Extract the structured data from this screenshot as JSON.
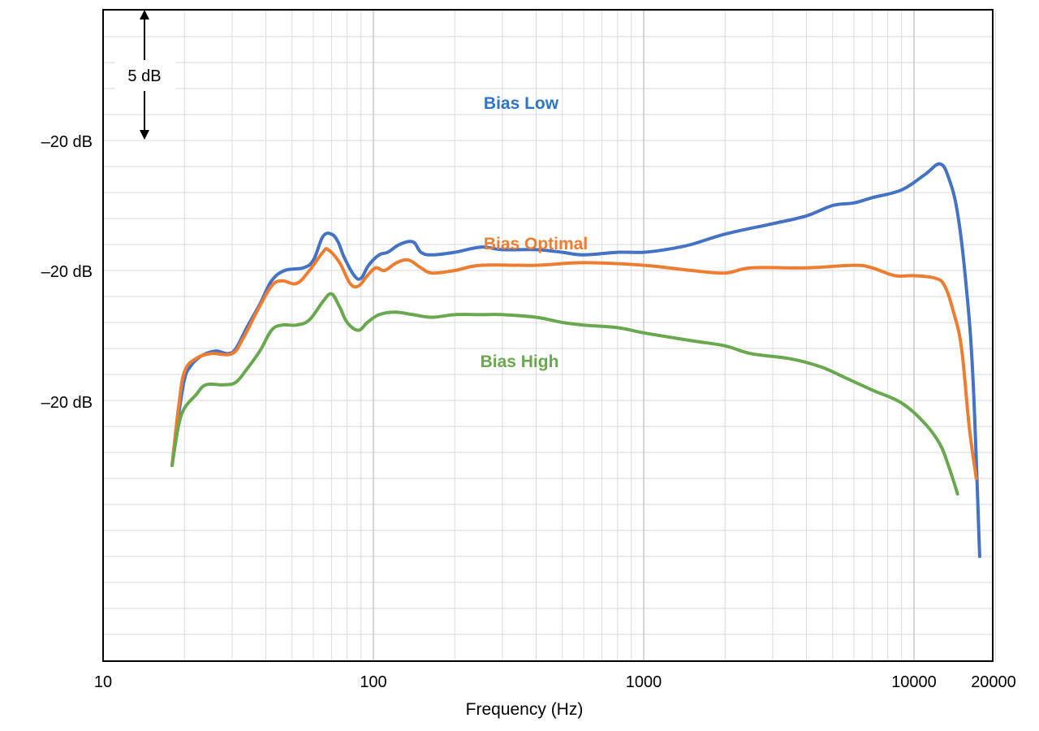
{
  "chart_data": {
    "type": "line",
    "xlabel": "Frequency (Hz)",
    "ylabel": "",
    "x_scale": "log",
    "xlim": [
      10,
      20000
    ],
    "grid": true,
    "legend": "inline labels",
    "x_ticks": [
      "10",
      "100",
      "1000",
      "10000",
      "20000"
    ],
    "y_ticks": [
      "–20 dB",
      "–20 dB",
      "–20 dB"
    ],
    "scale_marker": "5 dB",
    "series": [
      {
        "name": "Bias Low",
        "color": "#4472C4",
        "points": [
          [
            18,
            -25.5
          ],
          [
            19,
            -23.6
          ],
          [
            20,
            -22.2
          ],
          [
            21,
            -21.7
          ],
          [
            23,
            -21.3
          ],
          [
            26,
            -21.1
          ],
          [
            29,
            -21.2
          ],
          [
            31,
            -21.0
          ],
          [
            34,
            -20.2
          ],
          [
            38,
            -19.3
          ],
          [
            42,
            -18.4
          ],
          [
            47,
            -18.0
          ],
          [
            55,
            -17.9
          ],
          [
            60,
            -17.6
          ],
          [
            65,
            -16.7
          ],
          [
            70,
            -16.6
          ],
          [
            74,
            -16.9
          ],
          [
            78,
            -17.5
          ],
          [
            85,
            -18.2
          ],
          [
            90,
            -18.3
          ],
          [
            96,
            -17.8
          ],
          [
            105,
            -17.4
          ],
          [
            113,
            -17.3
          ],
          [
            125,
            -17.0
          ],
          [
            140,
            -16.9
          ],
          [
            150,
            -17.3
          ],
          [
            165,
            -17.4
          ],
          [
            200,
            -17.3
          ],
          [
            250,
            -17.1
          ],
          [
            300,
            -17.2
          ],
          [
            400,
            -17.2
          ],
          [
            500,
            -17.3
          ],
          [
            600,
            -17.4
          ],
          [
            800,
            -17.3
          ],
          [
            1000,
            -17.3
          ],
          [
            1200,
            -17.2
          ],
          [
            1500,
            -17.0
          ],
          [
            2000,
            -16.6
          ],
          [
            3000,
            -16.2
          ],
          [
            4000,
            -15.9
          ],
          [
            5000,
            -15.5
          ],
          [
            6000,
            -15.4
          ],
          [
            7000,
            -15.2
          ],
          [
            9000,
            -14.9
          ],
          [
            11000,
            -14.3
          ],
          [
            12500,
            -13.9
          ],
          [
            13500,
            -14.5
          ],
          [
            14500,
            -15.8
          ],
          [
            15500,
            -18.3
          ],
          [
            16500,
            -22.0
          ],
          [
            17500,
            -29.0
          ]
        ]
      },
      {
        "name": "Bias Optimal",
        "color": "#ED7D31",
        "points": [
          [
            18,
            -25.5
          ],
          [
            19,
            -23.3
          ],
          [
            20,
            -21.9
          ],
          [
            22,
            -21.4
          ],
          [
            25,
            -21.2
          ],
          [
            30,
            -21.2
          ],
          [
            33,
            -20.6
          ],
          [
            37,
            -19.6
          ],
          [
            42,
            -18.6
          ],
          [
            46,
            -18.4
          ],
          [
            52,
            -18.5
          ],
          [
            58,
            -18.0
          ],
          [
            65,
            -17.3
          ],
          [
            68,
            -17.2
          ],
          [
            75,
            -17.7
          ],
          [
            82,
            -18.5
          ],
          [
            88,
            -18.6
          ],
          [
            95,
            -18.2
          ],
          [
            102,
            -17.9
          ],
          [
            110,
            -18.0
          ],
          [
            122,
            -17.7
          ],
          [
            135,
            -17.6
          ],
          [
            150,
            -17.9
          ],
          [
            165,
            -18.1
          ],
          [
            200,
            -18.0
          ],
          [
            250,
            -17.8
          ],
          [
            400,
            -17.8
          ],
          [
            600,
            -17.7
          ],
          [
            1000,
            -17.8
          ],
          [
            1500,
            -18.0
          ],
          [
            2000,
            -18.1
          ],
          [
            2500,
            -17.9
          ],
          [
            4000,
            -17.9
          ],
          [
            6000,
            -17.8
          ],
          [
            7000,
            -17.9
          ],
          [
            8500,
            -18.2
          ],
          [
            10000,
            -18.2
          ],
          [
            12000,
            -18.3
          ],
          [
            13000,
            -18.6
          ],
          [
            14000,
            -19.6
          ],
          [
            15000,
            -21.0
          ],
          [
            16000,
            -24.0
          ],
          [
            17000,
            -26.0
          ]
        ]
      },
      {
        "name": "Bias High",
        "color": "#6AA84F",
        "points": [
          [
            18,
            -25.5
          ],
          [
            19,
            -24.0
          ],
          [
            20,
            -23.3
          ],
          [
            22,
            -22.8
          ],
          [
            24,
            -22.4
          ],
          [
            28,
            -22.4
          ],
          [
            31,
            -22.3
          ],
          [
            34,
            -21.8
          ],
          [
            38,
            -21.1
          ],
          [
            42,
            -20.3
          ],
          [
            46,
            -20.1
          ],
          [
            52,
            -20.1
          ],
          [
            58,
            -19.9
          ],
          [
            65,
            -19.2
          ],
          [
            70,
            -18.9
          ],
          [
            75,
            -19.4
          ],
          [
            80,
            -20.0
          ],
          [
            88,
            -20.3
          ],
          [
            95,
            -20.0
          ],
          [
            105,
            -19.7
          ],
          [
            120,
            -19.6
          ],
          [
            140,
            -19.7
          ],
          [
            165,
            -19.8
          ],
          [
            200,
            -19.7
          ],
          [
            250,
            -19.7
          ],
          [
            300,
            -19.7
          ],
          [
            400,
            -19.8
          ],
          [
            500,
            -20.0
          ],
          [
            600,
            -20.1
          ],
          [
            800,
            -20.2
          ],
          [
            1000,
            -20.4
          ],
          [
            1500,
            -20.7
          ],
          [
            2000,
            -20.9
          ],
          [
            2500,
            -21.2
          ],
          [
            3500,
            -21.4
          ],
          [
            4500,
            -21.7
          ],
          [
            5500,
            -22.1
          ],
          [
            7000,
            -22.6
          ],
          [
            9000,
            -23.1
          ],
          [
            11000,
            -23.9
          ],
          [
            12500,
            -24.7
          ],
          [
            13500,
            -25.6
          ],
          [
            14500,
            -26.6
          ]
        ]
      }
    ]
  }
}
